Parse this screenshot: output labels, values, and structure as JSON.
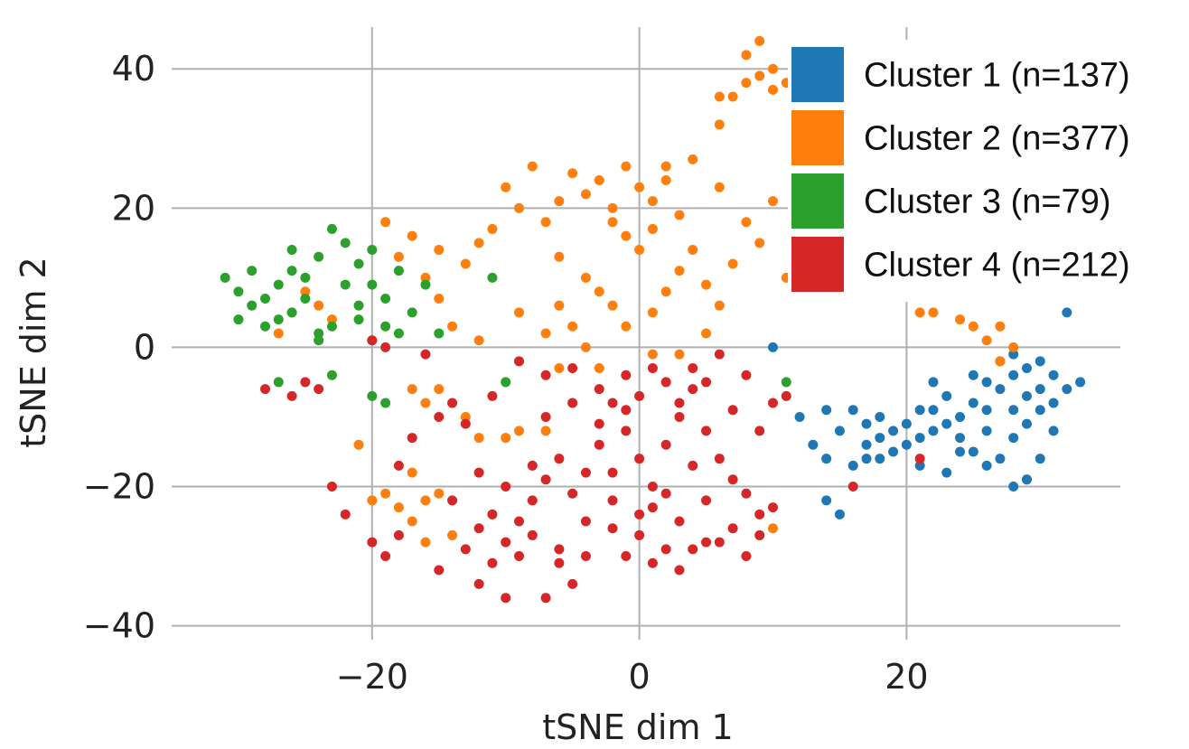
{
  "chart_data": {
    "type": "scatter",
    "xlabel": "tSNE dim 1",
    "ylabel": "tSNE dim 2",
    "xlim": [
      -35,
      36
    ],
    "ylim": [
      -42,
      46
    ],
    "xticks": [
      -20,
      0,
      20
    ],
    "yticks": [
      -40,
      -20,
      0,
      20,
      40
    ],
    "xtick_labels": [
      "−20",
      "0",
      "20"
    ],
    "ytick_labels": [
      "−40",
      "−20",
      "0",
      "20",
      "40"
    ],
    "grid": true,
    "legend_position": "top-right",
    "series": [
      {
        "name": "Cluster 1 (n=137)",
        "color": "#1f77b4",
        "points": [
          [
            12,
            -10
          ],
          [
            14,
            -9
          ],
          [
            15,
            -12
          ],
          [
            16,
            -9
          ],
          [
            17,
            -11
          ],
          [
            17,
            -14
          ],
          [
            18,
            -10
          ],
          [
            18,
            -13
          ],
          [
            19,
            -12
          ],
          [
            19,
            -15
          ],
          [
            18,
            -16
          ],
          [
            20,
            -14
          ],
          [
            20,
            -11
          ],
          [
            21,
            -17
          ],
          [
            21,
            -13
          ],
          [
            22,
            -9
          ],
          [
            22,
            -12
          ],
          [
            23,
            -7
          ],
          [
            23,
            -11
          ],
          [
            24,
            -10
          ],
          [
            24,
            -13
          ],
          [
            25,
            -4
          ],
          [
            25,
            -8
          ],
          [
            25,
            -15
          ],
          [
            26,
            -5
          ],
          [
            26,
            -9
          ],
          [
            26,
            -12
          ],
          [
            27,
            -2
          ],
          [
            27,
            -6
          ],
          [
            27,
            -16
          ],
          [
            28,
            -1
          ],
          [
            28,
            -4
          ],
          [
            28,
            -9
          ],
          [
            28,
            -13
          ],
          [
            29,
            -3
          ],
          [
            29,
            -7
          ],
          [
            29,
            -11
          ],
          [
            29,
            -19
          ],
          [
            30,
            -2
          ],
          [
            30,
            -6
          ],
          [
            30,
            -9
          ],
          [
            30,
            -16
          ],
          [
            31,
            -4
          ],
          [
            31,
            -8
          ],
          [
            31,
            -12
          ],
          [
            32,
            -6
          ],
          [
            33,
            -5
          ],
          [
            32,
            5
          ],
          [
            15,
            -24
          ],
          [
            14,
            -22
          ],
          [
            23,
            -18
          ],
          [
            24,
            -15
          ],
          [
            16,
            -17
          ],
          [
            17,
            -16
          ],
          [
            21,
            -9
          ],
          [
            22,
            -5
          ],
          [
            13,
            -14
          ],
          [
            14,
            -16
          ],
          [
            26,
            -17
          ],
          [
            28,
            -20
          ],
          [
            29,
            -19
          ],
          [
            10,
            0
          ]
        ]
      },
      {
        "name": "Cluster 2 (n=377)",
        "color": "#ff7f0e",
        "points": [
          [
            8,
            42
          ],
          [
            9,
            44
          ],
          [
            10,
            40
          ],
          [
            10,
            37
          ],
          [
            8,
            38
          ],
          [
            7,
            36
          ],
          [
            9,
            39
          ],
          [
            6,
            36
          ],
          [
            6,
            32
          ],
          [
            11,
            38
          ],
          [
            -4,
            22
          ],
          [
            -3,
            24
          ],
          [
            -2,
            20
          ],
          [
            -1,
            26
          ],
          [
            0,
            23
          ],
          [
            1,
            21
          ],
          [
            -2,
            18
          ],
          [
            -1,
            16
          ],
          [
            0,
            14
          ],
          [
            1,
            17
          ],
          [
            2,
            24
          ],
          [
            3,
            19
          ],
          [
            -5,
            25
          ],
          [
            -6,
            21
          ],
          [
            -7,
            18
          ],
          [
            -8,
            26
          ],
          [
            -9,
            20
          ],
          [
            -10,
            23
          ],
          [
            -11,
            17
          ],
          [
            -12,
            15
          ],
          [
            -13,
            12
          ],
          [
            -6,
            13
          ],
          [
            -4,
            10
          ],
          [
            -3,
            8
          ],
          [
            -2,
            6
          ],
          [
            -1,
            3
          ],
          [
            1,
            5
          ],
          [
            2,
            8
          ],
          [
            3,
            11
          ],
          [
            4,
            14
          ],
          [
            5,
            9
          ],
          [
            6,
            6
          ],
          [
            7,
            12
          ],
          [
            8,
            18
          ],
          [
            9,
            15
          ],
          [
            10,
            21
          ],
          [
            11,
            10
          ],
          [
            6,
            23
          ],
          [
            4,
            27
          ],
          [
            2,
            26
          ],
          [
            -5,
            3
          ],
          [
            -6,
            6
          ],
          [
            -7,
            2
          ],
          [
            -9,
            5
          ],
          [
            -12,
            1
          ],
          [
            -14,
            3
          ],
          [
            -15,
            7
          ],
          [
            -17,
            16
          ],
          [
            -19,
            18
          ],
          [
            -23,
            4
          ],
          [
            -24,
            6
          ],
          [
            -25,
            8
          ],
          [
            -26,
            5
          ],
          [
            -27,
            2
          ],
          [
            -18,
            13
          ],
          [
            -16,
            10
          ],
          [
            -15,
            14
          ],
          [
            5,
            2
          ],
          [
            3,
            -1
          ],
          [
            1,
            -1
          ],
          [
            -3,
            -3
          ],
          [
            -4,
            0
          ],
          [
            -6,
            -3
          ],
          [
            -15,
            -6
          ],
          [
            -16,
            -8
          ],
          [
            -17,
            -6
          ],
          [
            -16,
            -22
          ],
          [
            -17,
            -25
          ],
          [
            -15,
            -21
          ],
          [
            -18,
            -23
          ],
          [
            -16,
            -28
          ],
          [
            -14,
            -27
          ],
          [
            -17,
            -18
          ],
          [
            -19,
            -21
          ],
          [
            -20,
            -22
          ],
          [
            25,
            3
          ],
          [
            26,
            1
          ],
          [
            27,
            3
          ],
          [
            28,
            0
          ],
          [
            27,
            -2
          ],
          [
            24,
            4
          ],
          [
            21,
            5
          ],
          [
            22,
            5
          ],
          [
            10,
            -26
          ],
          [
            -10,
            -13
          ],
          [
            -9,
            -12
          ],
          [
            -12,
            -13
          ],
          [
            -13,
            -10
          ],
          [
            -7,
            -12
          ],
          [
            -21,
            -14
          ]
        ]
      },
      {
        "name": "Cluster 3 (n=79)",
        "color": "#2ca02c",
        "points": [
          [
            -31,
            10
          ],
          [
            -30,
            8
          ],
          [
            -29,
            11
          ],
          [
            -28,
            7
          ],
          [
            -27,
            9
          ],
          [
            -26,
            5
          ],
          [
            -25,
            10
          ],
          [
            -24,
            13
          ],
          [
            -23,
            17
          ],
          [
            -22,
            15
          ],
          [
            -21,
            12
          ],
          [
            -20,
            9
          ],
          [
            -19,
            7
          ],
          [
            -20,
            14
          ],
          [
            -18,
            11
          ],
          [
            -17,
            5
          ],
          [
            -19,
            3
          ],
          [
            -21,
            6
          ],
          [
            -22,
            9
          ],
          [
            -23,
            3
          ],
          [
            -24,
            2
          ],
          [
            -25,
            7
          ],
          [
            -26,
            11
          ],
          [
            -27,
            4
          ],
          [
            -28,
            3
          ],
          [
            -29,
            6
          ],
          [
            -30,
            4
          ],
          [
            -26,
            14
          ],
          [
            -24,
            1
          ],
          [
            -20,
            1
          ],
          [
            -18,
            2
          ],
          [
            -16,
            9
          ],
          [
            -21,
            4
          ],
          [
            -15,
            2
          ],
          [
            -23,
            -4
          ],
          [
            -27,
            -5
          ],
          [
            -19,
            -8
          ],
          [
            -11,
            10
          ],
          [
            -10,
            -5
          ],
          [
            11,
            -5
          ],
          [
            -20,
            -7
          ]
        ]
      },
      {
        "name": "Cluster 4 (n=212)",
        "color": "#d62728",
        "points": [
          [
            -2,
            -8
          ],
          [
            -1,
            -12
          ],
          [
            0,
            -16
          ],
          [
            1,
            -20
          ],
          [
            2,
            -14
          ],
          [
            3,
            -10
          ],
          [
            4,
            -6
          ],
          [
            5,
            -12
          ],
          [
            6,
            -16
          ],
          [
            7,
            -19
          ],
          [
            -3,
            -14
          ],
          [
            -4,
            -18
          ],
          [
            -5,
            -21
          ],
          [
            -6,
            -16
          ],
          [
            -7,
            -19
          ],
          [
            -8,
            -22
          ],
          [
            -9,
            -25
          ],
          [
            -10,
            -28
          ],
          [
            -11,
            -31
          ],
          [
            -12,
            -34
          ],
          [
            -10,
            -36
          ],
          [
            -8,
            -27
          ],
          [
            -6,
            -29
          ],
          [
            -4,
            -25
          ],
          [
            -2,
            -22
          ],
          [
            0,
            -24
          ],
          [
            2,
            -21
          ],
          [
            4,
            -17
          ],
          [
            -1,
            -4
          ],
          [
            1,
            -3
          ],
          [
            -3,
            -6
          ],
          [
            -5,
            -3
          ],
          [
            -7,
            -4
          ],
          [
            -9,
            -2
          ],
          [
            -11,
            -7
          ],
          [
            -13,
            -11
          ],
          [
            -12,
            -18
          ],
          [
            -14,
            -22
          ],
          [
            -13,
            -29
          ],
          [
            -15,
            -32
          ],
          [
            -18,
            -27
          ],
          [
            -19,
            -30
          ],
          [
            -20,
            -28
          ],
          [
            -22,
            -24
          ],
          [
            -23,
            -20
          ],
          [
            -24,
            -6
          ],
          [
            -25,
            -5
          ],
          [
            -28,
            -6
          ],
          [
            -26,
            -7
          ],
          [
            -18,
            -17
          ],
          [
            -17,
            -13
          ],
          [
            -15,
            -10
          ],
          [
            -14,
            -8
          ],
          [
            -20,
            1
          ],
          [
            -19,
            0
          ],
          [
            -16,
            -1
          ],
          [
            -7,
            -10
          ],
          [
            -5,
            -8
          ],
          [
            -3,
            -11
          ],
          [
            -2,
            -18
          ],
          [
            0,
            -27
          ],
          [
            1,
            -23
          ],
          [
            3,
            -25
          ],
          [
            5,
            -22
          ],
          [
            8,
            -21
          ],
          [
            9,
            -24
          ],
          [
            10,
            -23
          ],
          [
            9,
            -27
          ],
          [
            8,
            -30
          ],
          [
            7,
            -26
          ],
          [
            6,
            -28
          ],
          [
            5,
            -28
          ],
          [
            4,
            -29
          ],
          [
            2,
            -29
          ],
          [
            -9,
            -30
          ],
          [
            -6,
            -31
          ],
          [
            10,
            -8
          ],
          [
            11,
            -7
          ],
          [
            9,
            -12
          ],
          [
            8,
            -4
          ],
          [
            6,
            -1
          ],
          [
            4,
            -3
          ],
          [
            2,
            -5
          ],
          [
            0,
            -7
          ],
          [
            -1,
            -9
          ],
          [
            3,
            -8
          ],
          [
            5,
            -5
          ],
          [
            7,
            -9
          ],
          [
            -8,
            -17
          ],
          [
            -10,
            -20
          ],
          [
            -11,
            -24
          ],
          [
            -12,
            -26
          ],
          [
            -2,
            -26
          ],
          [
            -4,
            -30
          ],
          [
            16,
            -20
          ],
          [
            21,
            -16
          ],
          [
            -1,
            -30
          ],
          [
            1,
            -31
          ],
          [
            3,
            -32
          ],
          [
            -5,
            -34
          ],
          [
            -7,
            -36
          ]
        ]
      }
    ]
  }
}
